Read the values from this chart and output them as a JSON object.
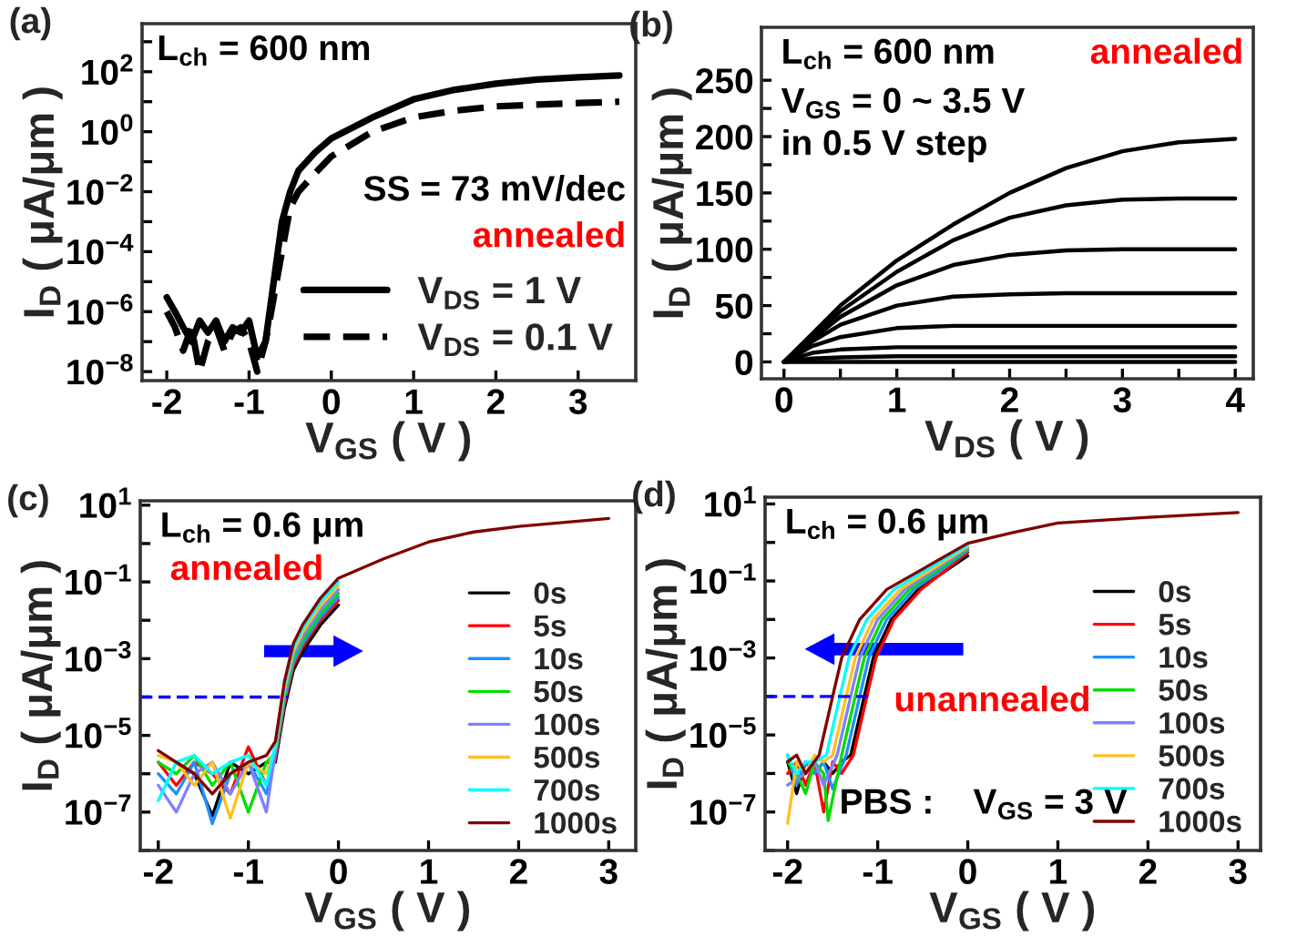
{
  "chart_data": [
    {
      "type": "line",
      "title": "(a)",
      "xlabel": "V$_{GS}$ ( V )",
      "ylabel": "I$_{D}$ ( μA/μm )",
      "log": "y",
      "legend": "lower right",
      "xlim": [
        -2.3,
        3.7
      ],
      "xticks": [
        -2,
        -1,
        0,
        1,
        2,
        3
      ],
      "ylim": [
        5e-09,
        4000
      ],
      "yticks": [
        {
          "value": 1000,
          "label": null
        },
        {
          "value": 100,
          "label": "10$^{2}$"
        },
        {
          "value": 10,
          "label": null
        },
        {
          "value": 1,
          "label": "10$^{0}$"
        },
        {
          "value": 0.1,
          "label": null
        },
        {
          "value": 0.01,
          "label": "10$^{−2}$"
        },
        {
          "value": 0.001,
          "label": null
        },
        {
          "value": 0.0001,
          "label": "10$^{−4}$"
        },
        {
          "value": 1e-05,
          "label": null
        },
        {
          "value": 1e-06,
          "label": "10$^{−6}$"
        },
        {
          "value": 1e-07,
          "label": null
        },
        {
          "value": 1e-08,
          "label": "10$^{−8}$"
        }
      ],
      "annotations": [
        "L$_{ch}$ = 600 nm",
        "SS = 73 mV/dec",
        "annealed"
      ],
      "x": [
        -2,
        -1.9,
        -1.8,
        -1.7,
        -1.6,
        -1.5,
        -1.4,
        -1.3,
        -1.2,
        -1.1,
        -1.0,
        -0.9,
        -0.8,
        -0.75,
        -0.7,
        -0.6,
        -0.5,
        -0.4,
        -0.2,
        0,
        0.5,
        1,
        1.5,
        2,
        2.5,
        3,
        3.5
      ],
      "series": [
        {
          "name": "V$_{DS}$ = 1 V",
          "color": "#000000",
          "line_style": "solid",
          "values": [
            3e-06,
            1e-06,
            3e-07,
            1e-07,
            5e-07,
            2e-07,
            5e-07,
            1e-07,
            3e-07,
            2e-07,
            5e-07,
            3e-08,
            1e-07,
            1e-06,
            1e-05,
            0.001,
            0.01,
            0.05,
            0.2,
            0.6,
            3,
            12,
            25,
            40,
            55,
            65,
            75
          ]
        },
        {
          "name": "V$_{DS}$ = 0.1 V",
          "color": "#000000",
          "line_style": "dashed",
          "values": [
            1e-06,
            3e-07,
            5e-08,
            3e-07,
            1e-08,
            1e-07,
            3e-07,
            5e-08,
            2e-07,
            3e-07,
            1e-07,
            1e-08,
            1e-07,
            5e-07,
            3e-06,
            0.0001,
            0.003,
            0.01,
            0.04,
            0.15,
            1,
            3,
            5,
            7,
            8,
            9,
            10
          ]
        }
      ]
    },
    {
      "type": "line",
      "title": "(b)",
      "xlabel": "V$_{DS}$ ( V )",
      "ylabel": "I$_{D}$ ( μA/μm )",
      "xlim": [
        -0.2,
        4.16
      ],
      "xticks": [
        0,
        {
          "value": 0.5,
          "label": null
        },
        1,
        {
          "value": 1.5,
          "label": null
        },
        2,
        {
          "value": 2.5,
          "label": null
        },
        3,
        {
          "value": 3.5,
          "label": null
        },
        4
      ],
      "ylim": [
        -15,
        297
      ],
      "yticks": [
        0,
        {
          "value": 25,
          "label": null
        },
        50,
        {
          "value": 75,
          "label": null
        },
        100,
        {
          "value": 125,
          "label": null
        },
        150,
        {
          "value": 175,
          "label": null
        },
        200,
        {
          "value": 225,
          "label": null
        },
        250
      ],
      "annotations": [
        "L$_{ch}$ = 600 nm",
        "V$_{GS}$ = 0 ~ 3.5 V",
        "in 0.5 V step",
        "annealed"
      ],
      "x": [
        0,
        0.25,
        0.5,
        1,
        1.5,
        2,
        2.5,
        3,
        3.5,
        4
      ],
      "series": [
        {
          "color": "#000000",
          "values": [
            0,
            0,
            0,
            0,
            0,
            0,
            0,
            0,
            0,
            0
          ]
        },
        {
          "color": "#000000",
          "values": [
            0,
            3,
            4,
            5,
            5,
            5,
            5,
            5,
            5,
            5
          ]
        },
        {
          "color": "#000000",
          "values": [
            0,
            8,
            11,
            13,
            13,
            13,
            13,
            13,
            13,
            13
          ]
        },
        {
          "color": "#000000",
          "values": [
            0,
            14,
            22,
            30,
            32,
            32,
            32,
            32,
            32,
            32
          ]
        },
        {
          "color": "#000000",
          "values": [
            0,
            18,
            33,
            50,
            58,
            60,
            61,
            61,
            61,
            61
          ]
        },
        {
          "color": "#000000",
          "values": [
            0,
            20,
            40,
            68,
            86,
            95,
            99,
            100,
            100,
            100
          ]
        },
        {
          "color": "#000000",
          "values": [
            0,
            22,
            45,
            80,
            108,
            128,
            139,
            144,
            145,
            145
          ]
        },
        {
          "color": "#000000",
          "values": [
            0,
            25,
            50,
            90,
            122,
            150,
            172,
            187,
            195,
            198
          ]
        }
      ]
    },
    {
      "type": "line",
      "title": "(c)",
      "xlabel": "V$_{GS}$ ( V )",
      "ylabel": "I$_{D}$ ( μA/μm )",
      "log": "y",
      "legend": "right",
      "xlim": [
        -2.2,
        3.3
      ],
      "xticks": [
        -2,
        -1,
        0,
        1,
        2,
        3
      ],
      "ylim": [
        1e-08,
        13
      ],
      "yticks": [
        {
          "value": 10,
          "label": "10$^{1}$"
        },
        {
          "value": 1,
          "label": null
        },
        {
          "value": 0.1,
          "label": "10$^{−1}$"
        },
        {
          "value": 0.01,
          "label": null
        },
        {
          "value": 0.001,
          "label": "10$^{−3}$"
        },
        {
          "value": 0.0001,
          "label": null
        },
        {
          "value": 1e-05,
          "label": "10$^{−5}$"
        },
        {
          "value": 1e-06,
          "label": null
        },
        {
          "value": 1e-07,
          "label": "10$^{−7}$"
        },
        {
          "value": 1e-08,
          "label": null
        }
      ],
      "annotations": [
        "L$_{ch}$ = 0.6 μm",
        "annealed"
      ],
      "x": [
        -2,
        -1.8,
        -1.6,
        -1.4,
        -1.2,
        -1.0,
        -0.8,
        -0.7,
        -0.6,
        -0.5,
        -0.4,
        -0.2,
        0,
        0.5,
        1,
        1.5,
        2,
        3
      ],
      "series": [
        {
          "name": "0s",
          "color": "#000000",
          "values": [
            null,
            2e-06,
            1e-06,
            8e-08,
            2e-06,
            1e-06,
            2e-06,
            2e-06,
            5e-05,
            0.0005,
            0.0015,
            0.0075,
            0.025,
            null,
            null,
            null,
            null,
            null
          ]
        },
        {
          "name": "5s",
          "color": "#ff0000",
          "values": [
            2e-06,
            5e-07,
            2e-06,
            1e-06,
            3e-07,
            5e-06,
            5e-07,
            2.5e-06,
            6.5e-05,
            0.00065,
            0.002,
            0.01,
            0.033,
            null,
            null,
            null,
            null,
            null
          ]
        },
        {
          "name": "10s",
          "color": "#1e90ff",
          "values": [
            1e-06,
            3e-07,
            2e-06,
            5e-08,
            1e-06,
            2e-06,
            3e-07,
            3e-06,
            8e-05,
            0.0008,
            0.0024,
            0.012,
            0.04,
            null,
            null,
            null,
            null,
            null
          ]
        },
        {
          "name": "50s",
          "color": "#00dd00",
          "values": [
            2e-06,
            1e-06,
            3e-06,
            5e-07,
            2e-06,
            1e-07,
            2e-06,
            3.5e-06,
            0.0001,
            0.001,
            0.003,
            0.015,
            0.05,
            null,
            null,
            null,
            null,
            null
          ]
        },
        {
          "name": "100s",
          "color": "#8080ff",
          "values": [
            5e-07,
            1e-07,
            1e-06,
            2e-06,
            3e-07,
            2e-06,
            1e-07,
            4e-06,
            0.000125,
            0.00125,
            0.0038,
            0.019,
            0.063,
            null,
            null,
            null,
            null,
            null
          ]
        },
        {
          "name": "500s",
          "color": "#ffc020",
          "values": [
            3e-06,
            2e-06,
            5e-07,
            2e-06,
            7e-08,
            2e-06,
            1e-06,
            5e-06,
            0.00016,
            0.0016,
            0.0048,
            0.024,
            0.08,
            null,
            null,
            null,
            null,
            null
          ]
        },
        {
          "name": "700s",
          "color": "#00ffff",
          "values": [
            2e-07,
            2e-06,
            3e-06,
            1e-06,
            2e-06,
            3e-06,
            5e-07,
            6e-06,
            0.0002,
            0.002,
            0.006,
            0.03,
            0.1,
            null,
            null,
            null,
            null,
            null
          ]
        },
        {
          "name": "1000s",
          "color": "#800000",
          "values": [
            4e-06,
            2e-06,
            1e-06,
            3e-07,
            1e-06,
            2e-06,
            3e-06,
            7e-06,
            0.00025,
            0.0025,
            0.0075,
            0.038,
            0.125,
            0.4,
            1.1,
            2,
            2.8,
            4.5
          ]
        },
        {
          "color": "#0000ff",
          "line_style": "dashed",
          "x": [
            -2.2,
            -0.55
          ],
          "values": [
            0.0001,
            0.0001
          ]
        }
      ]
    },
    {
      "type": "line",
      "title": "(d)",
      "xlabel": "V$_{GS}$ ( V )",
      "ylabel": "I$_{D}$ ( μA/μm )",
      "log": "y",
      "legend": "right",
      "xlim": [
        -2.25,
        3.25
      ],
      "xticks": [
        -2,
        -1,
        0,
        1,
        2,
        3
      ],
      "ylim": [
        1e-08,
        15
      ],
      "yticks": [
        {
          "value": 10,
          "label": "10$^{1}$"
        },
        {
          "value": 1,
          "label": null
        },
        {
          "value": 0.1,
          "label": "10$^{−1}$"
        },
        {
          "value": 0.01,
          "label": null
        },
        {
          "value": 0.001,
          "label": "10$^{−3}$"
        },
        {
          "value": 0.0001,
          "label": null
        },
        {
          "value": 1e-05,
          "label": "10$^{−5}$"
        },
        {
          "value": 1e-06,
          "label": null
        },
        {
          "value": 1e-07,
          "label": "10$^{−7}$"
        },
        {
          "value": 1e-08,
          "label": null
        }
      ],
      "annotations": [
        "L$_{ch}$ = 0.6 μm",
        "unannealed",
        "PBS :    V$_{GS}$ = 3 V"
      ],
      "series": [
        {
          "name": "0s",
          "color": "#000000",
          "x": [
            -2,
            -1.9,
            -1.8,
            -1.7,
            -1.6,
            -1.5,
            -1.4,
            -1.3,
            -1.15,
            -1.05,
            -0.85,
            -0.55,
            0
          ],
          "values": [
            2e-06,
            3e-07,
            2e-06,
            1e-06,
            2e-06,
            1e-06,
            2e-06,
            3e-06,
            0.0001,
            0.001,
            0.01,
            0.06,
            0.45
          ]
        },
        {
          "name": "5s",
          "color": "#ff0000",
          "x": [
            -2,
            -1.9,
            -1.8,
            -1.7,
            -1.6,
            -1.5,
            -1.4,
            -1.27,
            -1.12,
            -1.02,
            -0.82,
            -0.52,
            0
          ],
          "values": [
            1e-06,
            2e-06,
            5e-07,
            2e-06,
            1e-07,
            2e-06,
            1e-06,
            3e-06,
            0.0001,
            0.001,
            0.01,
            0.06,
            0.55
          ]
        },
        {
          "name": "10s",
          "color": "#1e90ff",
          "x": [
            -2,
            -1.9,
            -1.8,
            -1.7,
            -1.6,
            -1.5,
            -1.35,
            -1.2,
            -1.1,
            -0.9,
            -0.6,
            0
          ],
          "values": [
            3e-06,
            5e-07,
            2e-06,
            1e-06,
            2e-06,
            4e-07,
            3e-06,
            0.0001,
            0.001,
            0.01,
            0.06,
            0.62
          ]
        },
        {
          "name": "50s",
          "color": "#00dd00",
          "x": [
            -2,
            -1.9,
            -1.8,
            -1.7,
            -1.6,
            -1.55,
            -1.4,
            -1.25,
            -1.15,
            -0.95,
            -0.65,
            0
          ],
          "values": [
            2e-06,
            1e-06,
            3e-07,
            2e-06,
            1e-06,
            6e-08,
            3e-06,
            0.0001,
            0.001,
            0.01,
            0.06,
            0.68
          ]
        },
        {
          "name": "100s",
          "color": "#8080ff",
          "x": [
            -2,
            -1.9,
            -1.8,
            -1.7,
            -1.6,
            -1.45,
            -1.3,
            -1.2,
            -1.0,
            -0.7,
            0
          ],
          "values": [
            5e-07,
            null,
            1e-06,
            2e-06,
            5e-07,
            3e-06,
            0.0001,
            0.001,
            0.01,
            0.06,
            0.74
          ]
        },
        {
          "name": "500s",
          "color": "#ffc020",
          "x": [
            -2,
            -1.9,
            -1.8,
            -1.7,
            -1.6,
            -1.5,
            -1.35,
            -1.25,
            -1.05,
            -0.75,
            0
          ],
          "values": [
            5e-08,
            2e-06,
            1e-06,
            3e-06,
            2e-06,
            3e-06,
            0.0001,
            0.001,
            0.01,
            0.06,
            0.8
          ]
        },
        {
          "name": "700s",
          "color": "#00ffff",
          "x": [
            -2,
            -1.9,
            -1.8,
            -1.7,
            -1.57,
            -1.42,
            -1.32,
            -1.12,
            -0.82,
            0
          ],
          "values": [
            3e-06,
            1e-06,
            2e-06,
            2e-06,
            3e-06,
            0.0001,
            0.001,
            0.01,
            0.06,
            0.86
          ]
        },
        {
          "name": "1000s",
          "color": "#800000",
          "x": [
            -2,
            -1.9,
            -1.8,
            -1.65,
            -1.5,
            -1.4,
            -1.2,
            -0.9,
            0,
            0.5,
            1,
            2,
            3
          ],
          "values": [
            2e-06,
            3e-06,
            1e-06,
            3e-06,
            0.0001,
            0.001,
            0.01,
            0.06,
            0.95,
            1.8,
            3.2,
            4.5,
            6
          ]
        },
        {
          "color": "#0000ff",
          "line_style": "dashed",
          "x": [
            -2.25,
            -1.1
          ],
          "values": [
            0.0001,
            0.0001
          ]
        }
      ]
    }
  ]
}
